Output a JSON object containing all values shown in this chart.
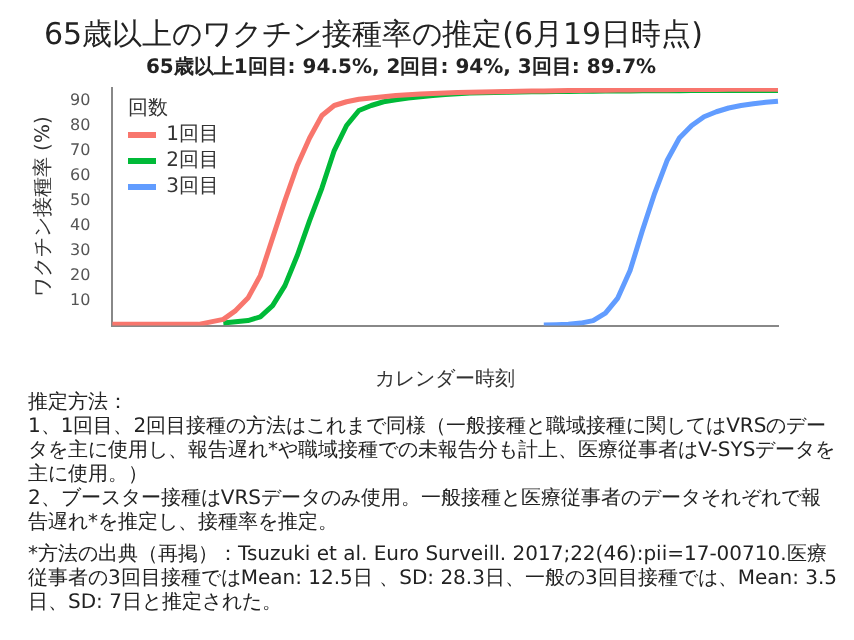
{
  "chart_data": {
    "type": "line",
    "title": "65歳以上のワクチン接種率の推定(6月19日時点)",
    "subtitle": "65歳以上1回目: 94.5%, 2回目: 94%, 3回目: 89.7%",
    "xlabel": "カレンダー時刻",
    "ylabel": "ワクチン接種率 (%)",
    "legend_title": "回数",
    "legend": "top left",
    "grid": false,
    "marker": "none",
    "categories": [
      null,
      null,
      null,
      null,
      null,
      null,
      null,
      null,
      null,
      null,
      null,
      null,
      null,
      null,
      null,
      null,
      null,
      null,
      null,
      null,
      null,
      null,
      null,
      null,
      null,
      null,
      null,
      null,
      null,
      null,
      null,
      null,
      null,
      null,
      null,
      null,
      null,
      null,
      null,
      null,
      null,
      null,
      null,
      null,
      null,
      null,
      null,
      null,
      null,
      null,
      null,
      null,
      null,
      null,
      null
    ],
    "ylim": [
      0,
      95
    ],
    "yticks": [
      10,
      20,
      30,
      40,
      50,
      60,
      70,
      80,
      90
    ],
    "series": [
      {
        "name": "1回目",
        "color": "#f8766d",
        "values": [
          0.5,
          0.5,
          0.5,
          0.5,
          0.5,
          0.5,
          0.5,
          0.5,
          1.5,
          2.5,
          6,
          11,
          20,
          35,
          50,
          64,
          75,
          84,
          88,
          89.5,
          90.5,
          91,
          91.5,
          92,
          92.3,
          92.6,
          92.8,
          93,
          93.2,
          93.3,
          93.4,
          93.5,
          93.6,
          93.7,
          93.8,
          93.8,
          93.9,
          94,
          94,
          94.1,
          94.1,
          94.2,
          94.2,
          94.3,
          94.3,
          94.3,
          94.4,
          94.4,
          94.4,
          94.4,
          94.5,
          94.5,
          94.5,
          94.5,
          94.5
        ]
      },
      {
        "name": "2回目",
        "color": "#00ba38",
        "values": [
          null,
          null,
          null,
          null,
          null,
          null,
          null,
          null,
          null,
          1,
          1.5,
          2,
          3.5,
          8,
          16,
          28,
          42,
          55,
          70,
          80,
          86,
          88,
          89.5,
          90.3,
          91,
          91.5,
          92,
          92.4,
          92.7,
          93,
          93.1,
          93.2,
          93.3,
          93.4,
          93.5,
          93.5,
          93.6,
          93.6,
          93.7,
          93.7,
          93.8,
          93.8,
          93.8,
          93.9,
          93.9,
          93.9,
          93.9,
          94,
          94,
          94,
          94,
          94,
          94,
          94,
          94
        ]
      },
      {
        "name": "3回目",
        "color": "#619cff",
        "values": [
          null,
          null,
          null,
          null,
          null,
          null,
          null,
          null,
          null,
          null,
          null,
          null,
          null,
          null,
          null,
          null,
          null,
          null,
          null,
          null,
          null,
          null,
          null,
          null,
          null,
          null,
          null,
          null,
          null,
          null,
          null,
          null,
          null,
          null,
          null,
          0.2,
          0.3,
          0.5,
          1,
          2,
          5,
          11,
          22,
          38,
          53,
          66,
          75,
          80,
          83.5,
          85.5,
          87,
          88,
          88.7,
          89.3,
          89.7
        ]
      }
    ],
    "annotations": [
      "推定方法：",
      "1、1回目、2回目接種の方法はこれまで同様（一般接種と職域接種に関してはVRSのデータを主に使用し、報告遅れ*や職域接種での未報告分も計上、医療従事者はV-SYSデータを主に使用。）",
      "2、ブースター接種はVRSデータのみ使用。一般接種と医療従事者のデータそれぞれで報告遅れ*を推定し、接種率を推定。",
      "*方法の出典（再掲）：Tsuzuki et al. Euro Surveill. 2017;22(46):pii=17-00710.医療従事者の3回目接種ではMean: 12.5日 、SD: 28.3日、一般の3回目接種では、Mean: 3.5日、SD: 7日と推定された。"
    ]
  }
}
